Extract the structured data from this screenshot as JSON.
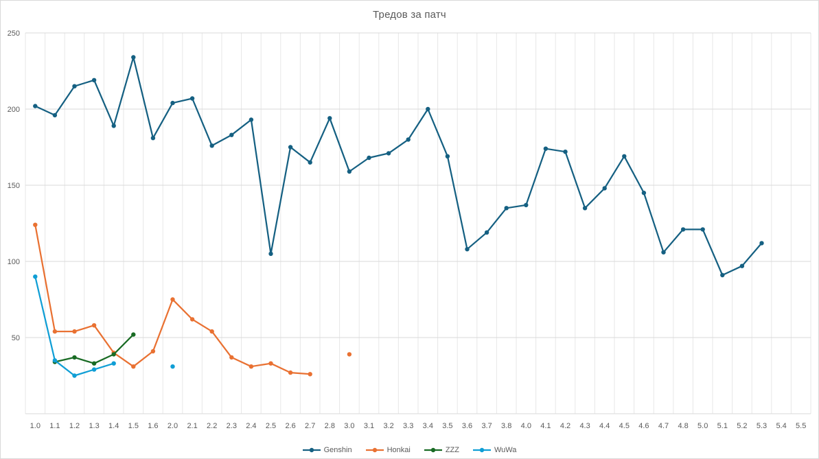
{
  "chart_data": {
    "type": "line",
    "title": "Тредов за патч",
    "categories": [
      "1.0",
      "1.1",
      "1.2",
      "1.3",
      "1.4",
      "1.5",
      "1.6",
      "2.0",
      "2.1",
      "2.2",
      "2.3",
      "2.4",
      "2.5",
      "2.6",
      "2.7",
      "2.8",
      "3.0",
      "3.1",
      "3.2",
      "3.3",
      "3.4",
      "3.5",
      "3.6",
      "3.7",
      "3.8",
      "4.0",
      "4.1",
      "4.2",
      "4.3",
      "4.4",
      "4.5",
      "4.6",
      "4.7",
      "4.8",
      "5.0",
      "5.1",
      "5.2",
      "5.3",
      "5.4",
      "5.5"
    ],
    "ylim": [
      0,
      250
    ],
    "yticks": [
      50,
      100,
      150,
      200,
      250
    ],
    "grid": true,
    "legend_position": "bottom",
    "series": [
      {
        "name": "Genshin",
        "color": "#156082",
        "values": [
          202,
          196,
          215,
          219,
          189,
          234,
          181,
          204,
          207,
          176,
          183,
          193,
          105,
          175,
          165,
          194,
          159,
          168,
          171,
          180,
          200,
          169,
          108,
          119,
          135,
          137,
          174,
          172,
          135,
          148,
          169,
          145,
          106,
          121,
          121,
          91,
          97,
          112,
          null,
          null
        ]
      },
      {
        "name": "Honkai",
        "color": "#E97132",
        "values": [
          124,
          54,
          54,
          58,
          40,
          31,
          41,
          75,
          62,
          54,
          37,
          31,
          33,
          27,
          26,
          null,
          39,
          null,
          null,
          null,
          null,
          null,
          null,
          null,
          null,
          null,
          null,
          null,
          null,
          null,
          null,
          null,
          null,
          null,
          null,
          null,
          null,
          null,
          null,
          null
        ]
      },
      {
        "name": "ZZZ",
        "color": "#196B24",
        "values": [
          null,
          34,
          37,
          33,
          39,
          52,
          null,
          null,
          null,
          null,
          null,
          null,
          null,
          null,
          null,
          null,
          null,
          null,
          null,
          null,
          null,
          null,
          null,
          null,
          null,
          null,
          null,
          null,
          null,
          null,
          null,
          null,
          null,
          null,
          null,
          null,
          null,
          null,
          null,
          null
        ]
      },
      {
        "name": "WuWa",
        "color": "#0F9ED5",
        "values": [
          90,
          35,
          25,
          29,
          33,
          null,
          null,
          31,
          null,
          null,
          null,
          null,
          null,
          null,
          null,
          null,
          null,
          null,
          null,
          null,
          null,
          null,
          null,
          null,
          null,
          null,
          null,
          null,
          null,
          null,
          null,
          null,
          null,
          null,
          null,
          null,
          null,
          null,
          null,
          null
        ]
      }
    ]
  },
  "colors": {
    "grid_h": "#D9D9D9",
    "grid_v": "#E7E7E7",
    "axis_line": "#D9D9D9",
    "axis_text": "#595959",
    "title_text": "#595959",
    "background": "#FFFFFF",
    "border": "#D9D9D9"
  }
}
